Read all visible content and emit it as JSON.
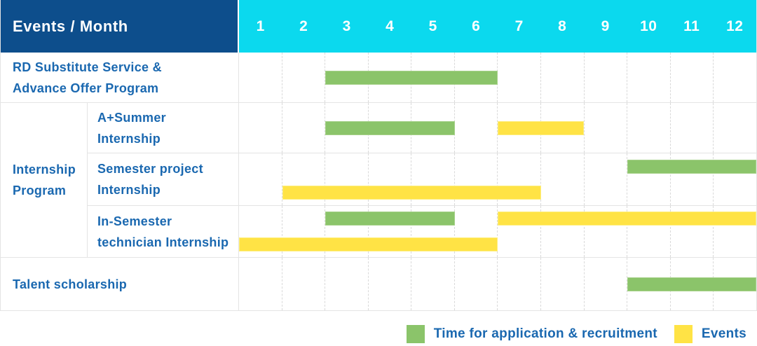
{
  "header": {
    "title": "Events / Month",
    "months": [
      "1",
      "2",
      "3",
      "4",
      "5",
      "6",
      "7",
      "8",
      "9",
      "10",
      "11",
      "12"
    ]
  },
  "legend": {
    "items": [
      {
        "key": "recruitment",
        "label": "Time for application & recruitment"
      },
      {
        "key": "event",
        "label": "Events"
      }
    ]
  },
  "colors": {
    "header_bg": "#0d4e8c",
    "months_bg": "#0bd9ee",
    "label_text": "#1a68b0",
    "recruitment": "#8bc46a",
    "event": "#ffe345",
    "grid_border": "#e4e4e4",
    "grid_dash": "#d9d9d9"
  },
  "chart_data": {
    "type": "bar",
    "subtype": "gantt-timeline",
    "title": "Events / Month",
    "x_axis_label": "Month",
    "categories": [
      "1",
      "2",
      "3",
      "4",
      "5",
      "6",
      "7",
      "8",
      "9",
      "10",
      "11",
      "12"
    ],
    "x_range": [
      1,
      12
    ],
    "grid": "dashed-vertical-month-lines",
    "legend_position": "bottom-right",
    "series_legend": {
      "recruitment": "Time for application & recruitment",
      "event": "Events"
    },
    "row_groups": [
      {
        "label": "Internship Program",
        "label_lines": [
          "Internship",
          "Program"
        ],
        "row_indexes": [
          1,
          2,
          3
        ]
      }
    ],
    "rows": [
      {
        "label": "RD Substitute Service & Advance Offer Program",
        "label_lines": [
          "RD Substitute Service &",
          "Advance Offer Program"
        ],
        "group": null,
        "tracks": [
          [
            {
              "kind": "recruitment",
              "start_month": 3,
              "end_month": 6
            }
          ]
        ]
      },
      {
        "label": "A+Summer Internship",
        "label_lines": [
          "A+Summer",
          "Internship"
        ],
        "group": "Internship Program",
        "tracks": [
          [
            {
              "kind": "recruitment",
              "start_month": 3,
              "end_month": 5
            },
            {
              "kind": "event",
              "start_month": 7,
              "end_month": 8
            }
          ]
        ]
      },
      {
        "label": "Semester project Internship",
        "label_lines": [
          "Semester project",
          "Internship"
        ],
        "group": "Internship Program",
        "tracks": [
          [
            {
              "kind": "recruitment",
              "start_month": 10,
              "end_month": 12
            }
          ],
          [
            {
              "kind": "event",
              "start_month": 2,
              "end_month": 7
            }
          ]
        ]
      },
      {
        "label": "In-Semester technician Internship",
        "label_lines": [
          "In-Semester",
          "technician Internship"
        ],
        "group": "Internship Program",
        "tracks": [
          [
            {
              "kind": "recruitment",
              "start_month": 3,
              "end_month": 5
            },
            {
              "kind": "event",
              "start_month": 7,
              "end_month": 12
            }
          ],
          [
            {
              "kind": "event",
              "start_month": 1,
              "end_month": 6
            }
          ]
        ]
      },
      {
        "label": "Talent scholarship",
        "label_lines": [
          "Talent scholarship"
        ],
        "group": null,
        "tracks": [
          [
            {
              "kind": "recruitment",
              "start_month": 10,
              "end_month": 12
            }
          ]
        ]
      }
    ]
  }
}
